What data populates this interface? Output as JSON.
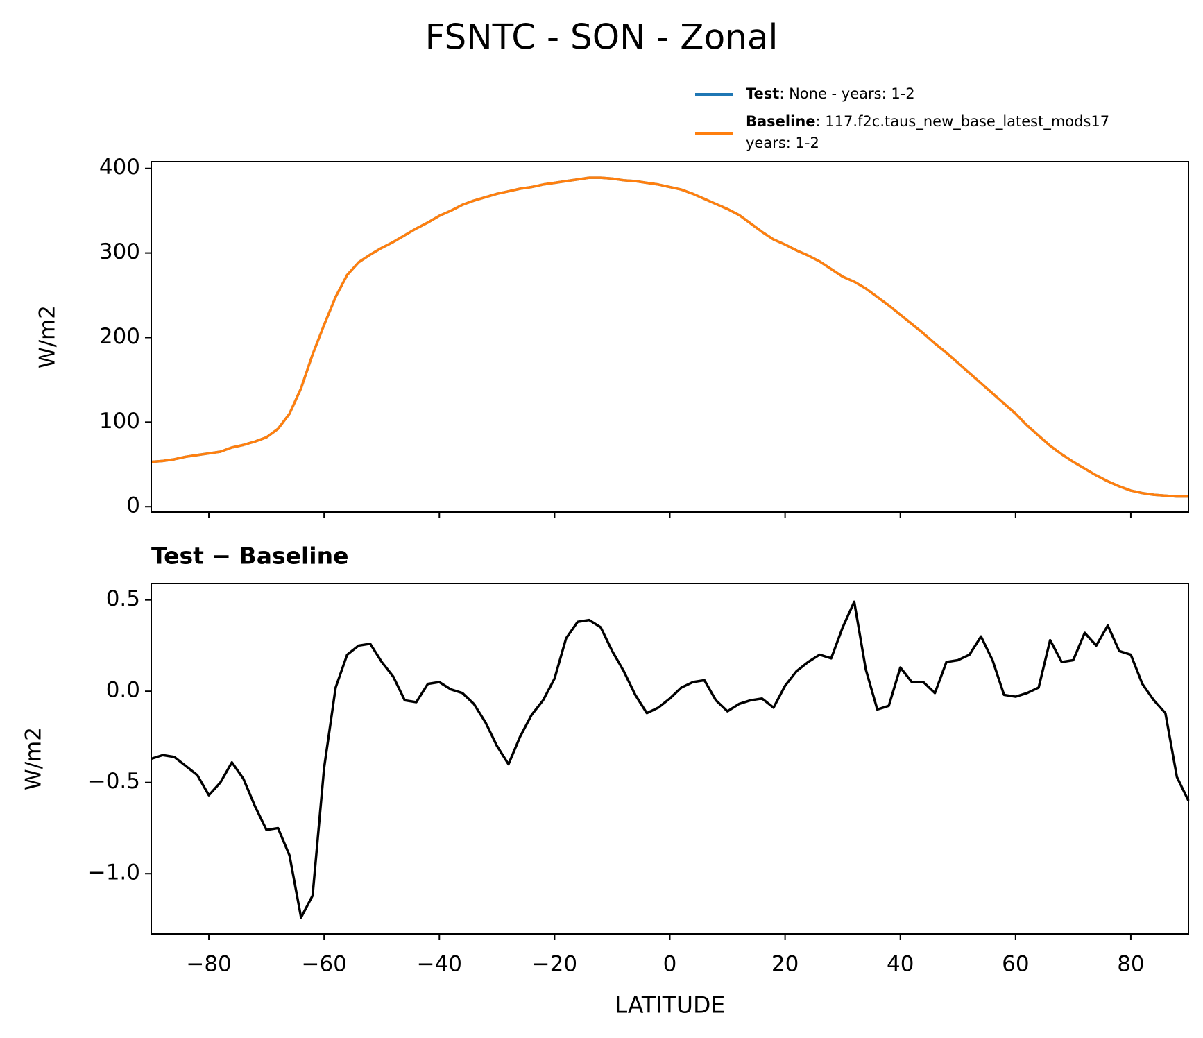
{
  "chart_data": [
    {
      "type": "line",
      "title": "FSNTC - SON - Zonal",
      "ylabel": "W/m2",
      "x": [
        -90,
        -88,
        -86,
        -84,
        -82,
        -80,
        -78,
        -76,
        -74,
        -72,
        -70,
        -68,
        -66,
        -64,
        -62,
        -60,
        -58,
        -56,
        -54,
        -52,
        -50,
        -48,
        -46,
        -44,
        -42,
        -40,
        -38,
        -36,
        -34,
        -32,
        -30,
        -28,
        -26,
        -24,
        -22,
        -20,
        -18,
        -16,
        -14,
        -12,
        -10,
        -8,
        -6,
        -4,
        -2,
        0,
        2,
        4,
        6,
        8,
        10,
        12,
        14,
        16,
        18,
        20,
        22,
        24,
        26,
        28,
        30,
        32,
        34,
        36,
        38,
        40,
        42,
        44,
        46,
        48,
        50,
        52,
        54,
        56,
        58,
        60,
        62,
        64,
        66,
        68,
        70,
        72,
        74,
        76,
        78,
        80,
        82,
        84,
        86,
        88,
        90
      ],
      "series": [
        {
          "name": "Test",
          "description": [
            ": None - years: 1-2"
          ],
          "color": "#1f77b4",
          "values": [
            53,
            54,
            56,
            59,
            61,
            63,
            65,
            70,
            73,
            77,
            82,
            92,
            110,
            140,
            180,
            215,
            248,
            274,
            289,
            298,
            306,
            313,
            321,
            329,
            336,
            344,
            350,
            357,
            362,
            366,
            370,
            373,
            376,
            378,
            381,
            383,
            385,
            387,
            389,
            389,
            388,
            386,
            385,
            383,
            381,
            378,
            375,
            370,
            364,
            358,
            352,
            345,
            335,
            325,
            316,
            310,
            303,
            297,
            290,
            281,
            272,
            266,
            258,
            248,
            238,
            227,
            216,
            205,
            193,
            182,
            170,
            158,
            146,
            134,
            122,
            110,
            96,
            84,
            72,
            62,
            53,
            45,
            37,
            30,
            24,
            19,
            16,
            14,
            13,
            12,
            12
          ]
        },
        {
          "name": "Baseline",
          "description": [
            ": 117.f2c.taus_new_base_latest_mods17",
            "years: 1-2"
          ],
          "color": "#ff7f0e",
          "values": [
            53,
            54,
            56,
            59,
            61,
            63,
            65,
            70,
            73,
            77,
            82,
            92,
            110,
            140,
            180,
            215,
            248,
            274,
            289,
            298,
            306,
            313,
            321,
            329,
            336,
            344,
            350,
            357,
            362,
            366,
            370,
            373,
            376,
            378,
            381,
            383,
            385,
            387,
            389,
            389,
            388,
            386,
            385,
            383,
            381,
            378,
            375,
            370,
            364,
            358,
            352,
            345,
            335,
            325,
            316,
            310,
            303,
            297,
            290,
            281,
            272,
            266,
            258,
            248,
            238,
            227,
            216,
            205,
            193,
            182,
            170,
            158,
            146,
            134,
            122,
            110,
            96,
            84,
            72,
            62,
            53,
            45,
            37,
            30,
            24,
            19,
            16,
            14,
            13,
            12,
            12
          ]
        }
      ],
      "xlim": [
        -90,
        90
      ],
      "xticks": [
        -80,
        -60,
        -40,
        -20,
        0,
        20,
        40,
        60,
        80
      ],
      "ylim": [
        -6.4,
        408
      ],
      "yticks": [
        0,
        100,
        200,
        300,
        400
      ]
    },
    {
      "type": "line",
      "title": "Test − Baseline",
      "ylabel": "W/m2",
      "xlabel": "LATITUDE",
      "color": "#000000",
      "x": [
        -90,
        -88,
        -86,
        -84,
        -82,
        -80,
        -78,
        -76,
        -74,
        -72,
        -70,
        -68,
        -66,
        -64,
        -62,
        -60,
        -58,
        -56,
        -54,
        -52,
        -50,
        -48,
        -46,
        -44,
        -42,
        -40,
        -38,
        -36,
        -34,
        -32,
        -30,
        -28,
        -26,
        -24,
        -22,
        -20,
        -18,
        -16,
        -14,
        -12,
        -10,
        -8,
        -6,
        -4,
        -2,
        0,
        2,
        4,
        6,
        8,
        10,
        12,
        14,
        16,
        18,
        20,
        22,
        24,
        26,
        28,
        30,
        32,
        34,
        36,
        38,
        40,
        42,
        44,
        46,
        48,
        50,
        52,
        54,
        56,
        58,
        60,
        62,
        64,
        66,
        68,
        70,
        72,
        74,
        76,
        78,
        80,
        82,
        84,
        86,
        88,
        90
      ],
      "values": [
        -0.37,
        -0.35,
        -0.36,
        -0.41,
        -0.46,
        -0.57,
        -0.5,
        -0.39,
        -0.48,
        -0.63,
        -0.76,
        -0.75,
        -0.9,
        -1.24,
        -1.12,
        -0.42,
        0.02,
        0.2,
        0.25,
        0.26,
        0.16,
        0.08,
        -0.05,
        -0.06,
        0.04,
        0.05,
        0.01,
        -0.01,
        -0.07,
        -0.17,
        -0.3,
        -0.4,
        -0.25,
        -0.13,
        -0.05,
        0.07,
        0.29,
        0.38,
        0.39,
        0.35,
        0.22,
        0.11,
        -0.02,
        -0.12,
        -0.09,
        -0.04,
        0.02,
        0.05,
        0.06,
        -0.05,
        -0.11,
        -0.07,
        -0.05,
        -0.04,
        -0.09,
        0.03,
        0.11,
        0.16,
        0.2,
        0.18,
        0.35,
        0.49,
        0.12,
        -0.1,
        -0.08,
        0.13,
        0.05,
        0.05,
        -0.01,
        0.16,
        0.17,
        0.2,
        0.3,
        0.17,
        -0.02,
        -0.03,
        -0.01,
        0.02,
        0.28,
        0.16,
        0.17,
        0.32,
        0.25,
        0.36,
        0.22,
        0.2,
        0.04,
        -0.05,
        -0.12,
        -0.47,
        -0.6
      ],
      "xlim": [
        -90,
        90
      ],
      "xticks": [
        {
          "value": -80,
          "label": "−80"
        },
        {
          "value": -60,
          "label": "−60"
        },
        {
          "value": -40,
          "label": "−40"
        },
        {
          "value": -20,
          "label": "−20"
        },
        0,
        20,
        40,
        60,
        80
      ],
      "ylim": [
        -1.33,
        0.59
      ],
      "yticks": [
        {
          "value": -1,
          "label": "−1.0"
        },
        {
          "value": -0.5,
          "label": "−0.5"
        },
        {
          "value": 0,
          "label": "0.0"
        },
        0.5
      ]
    }
  ]
}
